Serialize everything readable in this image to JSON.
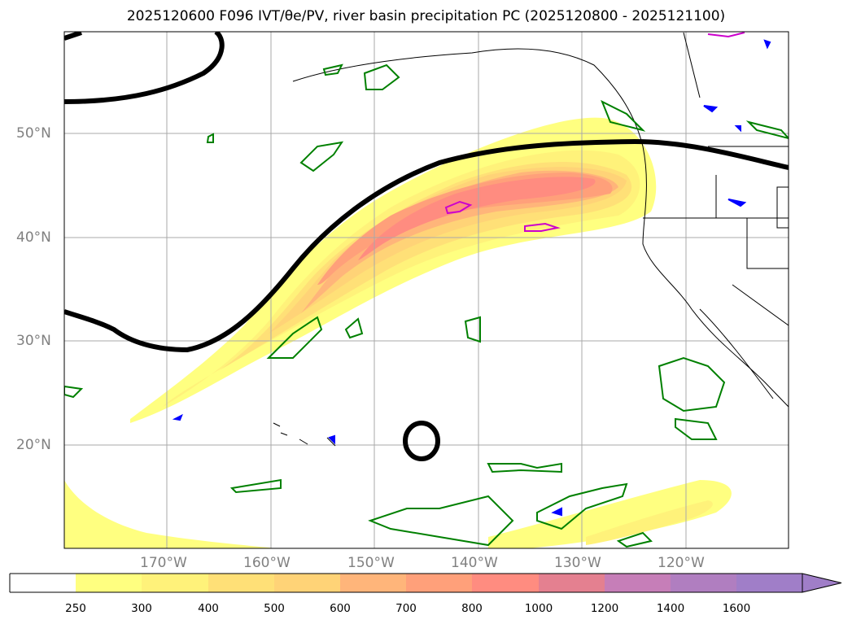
{
  "title": "2025120600 F096 IVT/θe/PV, river basin precipitation PC (2025120800 - 2025121100)",
  "map": {
    "lat_labels": [
      "50°N",
      "40°N",
      "30°N",
      "20°N"
    ],
    "lon_labels": [
      "170°W",
      "160°W",
      "150°W",
      "140°W",
      "130°W",
      "120°W"
    ]
  },
  "colorbar": {
    "ticks": [
      "250",
      "300",
      "400",
      "500",
      "600",
      "700",
      "800",
      "1000",
      "1200",
      "1400",
      "1600"
    ],
    "colors": [
      "#ffffff",
      "#ffff80",
      "#fff27a",
      "#ffe077",
      "#ffd377",
      "#ffb57a",
      "#ffa07a",
      "#ff8c80",
      "#e48090",
      "#c67eb8",
      "#a07ec8"
    ]
  },
  "legend_colors": {
    "ivt_contour": "#000000",
    "precip": "#008000",
    "pv": "#cc00cc",
    "theta": "#0000ff"
  }
}
